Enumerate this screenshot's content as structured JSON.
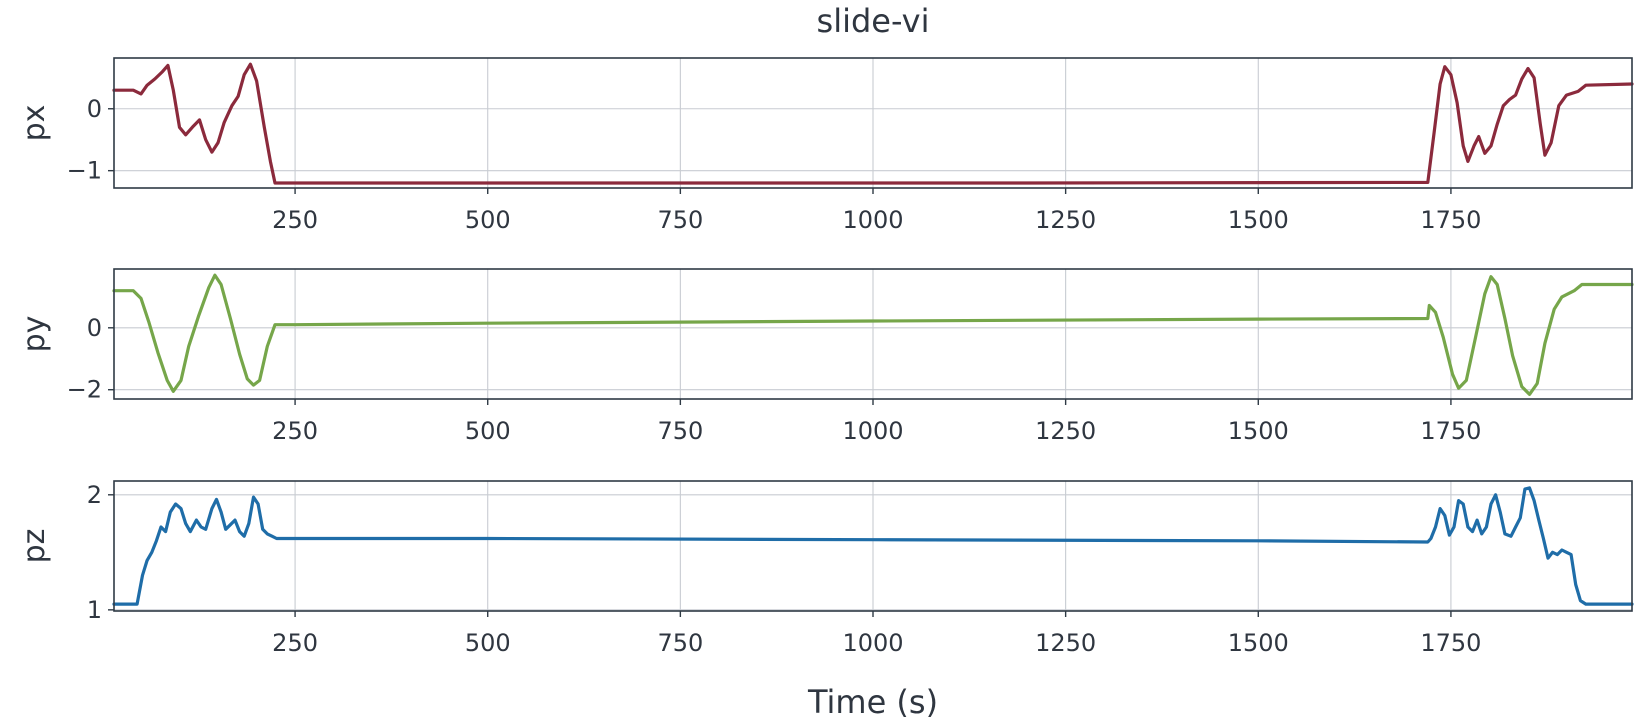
{
  "figure": {
    "title": "slide-vi",
    "xlabel": "Time (s)"
  },
  "chart_data": [
    {
      "type": "line",
      "ylabel": "px",
      "xlim": [
        15,
        1985
      ],
      "ylim": [
        -1.28,
        0.82
      ],
      "grid": true,
      "xticks": [
        250,
        500,
        750,
        1000,
        1250,
        1500,
        1750
      ],
      "yticks": [
        -1,
        0
      ],
      "ytick_labels": [
        "−1",
        "0"
      ],
      "series": [
        {
          "color": "#8b2a3c",
          "points": [
            [
              15,
              0.3
            ],
            [
              40,
              0.3
            ],
            [
              50,
              0.24
            ],
            [
              58,
              0.38
            ],
            [
              68,
              0.48
            ],
            [
              78,
              0.6
            ],
            [
              85,
              0.7
            ],
            [
              92,
              0.3
            ],
            [
              100,
              -0.3
            ],
            [
              108,
              -0.42
            ],
            [
              118,
              -0.28
            ],
            [
              126,
              -0.18
            ],
            [
              134,
              -0.5
            ],
            [
              142,
              -0.7
            ],
            [
              150,
              -0.55
            ],
            [
              158,
              -0.22
            ],
            [
              168,
              0.05
            ],
            [
              176,
              0.2
            ],
            [
              184,
              0.55
            ],
            [
              192,
              0.72
            ],
            [
              200,
              0.45
            ],
            [
              210,
              -0.3
            ],
            [
              218,
              -0.85
            ],
            [
              224,
              -1.2
            ],
            [
              400,
              -1.2
            ],
            [
              800,
              -1.2
            ],
            [
              1200,
              -1.2
            ],
            [
              1720,
              -1.19
            ],
            [
              1728,
              -0.4
            ],
            [
              1736,
              0.4
            ],
            [
              1742,
              0.68
            ],
            [
              1750,
              0.55
            ],
            [
              1758,
              0.1
            ],
            [
              1766,
              -0.6
            ],
            [
              1772,
              -0.85
            ],
            [
              1780,
              -0.6
            ],
            [
              1786,
              -0.45
            ],
            [
              1794,
              -0.72
            ],
            [
              1802,
              -0.6
            ],
            [
              1810,
              -0.25
            ],
            [
              1818,
              0.05
            ],
            [
              1826,
              0.15
            ],
            [
              1834,
              0.22
            ],
            [
              1842,
              0.48
            ],
            [
              1850,
              0.65
            ],
            [
              1858,
              0.5
            ],
            [
              1866,
              -0.25
            ],
            [
              1872,
              -0.75
            ],
            [
              1880,
              -0.55
            ],
            [
              1890,
              0.05
            ],
            [
              1900,
              0.22
            ],
            [
              1915,
              0.28
            ],
            [
              1925,
              0.38
            ],
            [
              1985,
              0.4
            ]
          ]
        }
      ]
    },
    {
      "type": "line",
      "ylabel": "py",
      "xlim": [
        15,
        1985
      ],
      "ylim": [
        -2.3,
        1.9
      ],
      "grid": true,
      "xticks": [
        250,
        500,
        750,
        1000,
        1250,
        1500,
        1750
      ],
      "yticks": [
        -2,
        0
      ],
      "ytick_labels": [
        "−2",
        "0"
      ],
      "series": [
        {
          "color": "#76a64a",
          "points": [
            [
              15,
              1.2
            ],
            [
              40,
              1.2
            ],
            [
              50,
              0.95
            ],
            [
              60,
              0.2
            ],
            [
              72,
              -0.8
            ],
            [
              84,
              -1.7
            ],
            [
              92,
              -2.05
            ],
            [
              102,
              -1.7
            ],
            [
              112,
              -0.6
            ],
            [
              125,
              0.4
            ],
            [
              138,
              1.3
            ],
            [
              146,
              1.7
            ],
            [
              154,
              1.4
            ],
            [
              166,
              0.3
            ],
            [
              178,
              -0.85
            ],
            [
              188,
              -1.65
            ],
            [
              196,
              -1.85
            ],
            [
              204,
              -1.7
            ],
            [
              214,
              -0.6
            ],
            [
              224,
              0.1
            ],
            [
              250,
              0.1
            ],
            [
              500,
              0.15
            ],
            [
              1000,
              0.22
            ],
            [
              1500,
              0.28
            ],
            [
              1720,
              0.3
            ],
            [
              1722,
              0.72
            ],
            [
              1730,
              0.5
            ],
            [
              1740,
              -0.3
            ],
            [
              1752,
              -1.5
            ],
            [
              1760,
              -1.95
            ],
            [
              1770,
              -1.7
            ],
            [
              1782,
              -0.3
            ],
            [
              1794,
              1.1
            ],
            [
              1802,
              1.65
            ],
            [
              1810,
              1.4
            ],
            [
              1820,
              0.3
            ],
            [
              1830,
              -0.9
            ],
            [
              1842,
              -1.9
            ],
            [
              1852,
              -2.15
            ],
            [
              1862,
              -1.8
            ],
            [
              1872,
              -0.5
            ],
            [
              1884,
              0.6
            ],
            [
              1894,
              1.0
            ],
            [
              1910,
              1.2
            ],
            [
              1920,
              1.4
            ],
            [
              1985,
              1.4
            ]
          ]
        }
      ]
    },
    {
      "type": "line",
      "ylabel": "pz",
      "xlim": [
        15,
        1985
      ],
      "ylim": [
        0.99,
        2.12
      ],
      "grid": true,
      "xticks": [
        250,
        500,
        750,
        1000,
        1250,
        1500,
        1750
      ],
      "yticks": [
        1,
        2
      ],
      "ytick_labels": [
        "1",
        "2"
      ],
      "series": [
        {
          "color": "#1f6da8",
          "points": [
            [
              15,
              1.05
            ],
            [
              45,
              1.05
            ],
            [
              52,
              1.3
            ],
            [
              58,
              1.43
            ],
            [
              64,
              1.5
            ],
            [
              70,
              1.6
            ],
            [
              76,
              1.72
            ],
            [
              82,
              1.68
            ],
            [
              88,
              1.85
            ],
            [
              95,
              1.92
            ],
            [
              102,
              1.88
            ],
            [
              108,
              1.75
            ],
            [
              114,
              1.68
            ],
            [
              122,
              1.78
            ],
            [
              128,
              1.72
            ],
            [
              134,
              1.7
            ],
            [
              142,
              1.88
            ],
            [
              148,
              1.96
            ],
            [
              154,
              1.85
            ],
            [
              160,
              1.7
            ],
            [
              166,
              1.74
            ],
            [
              172,
              1.78
            ],
            [
              178,
              1.68
            ],
            [
              184,
              1.64
            ],
            [
              190,
              1.75
            ],
            [
              196,
              1.98
            ],
            [
              202,
              1.92
            ],
            [
              208,
              1.7
            ],
            [
              214,
              1.66
            ],
            [
              220,
              1.64
            ],
            [
              226,
              1.62
            ],
            [
              500,
              1.62
            ],
            [
              1000,
              1.61
            ],
            [
              1500,
              1.6
            ],
            [
              1720,
              1.59
            ],
            [
              1724,
              1.62
            ],
            [
              1730,
              1.72
            ],
            [
              1736,
              1.88
            ],
            [
              1742,
              1.82
            ],
            [
              1748,
              1.65
            ],
            [
              1754,
              1.72
            ],
            [
              1760,
              1.95
            ],
            [
              1766,
              1.92
            ],
            [
              1772,
              1.72
            ],
            [
              1778,
              1.68
            ],
            [
              1784,
              1.78
            ],
            [
              1790,
              1.66
            ],
            [
              1796,
              1.72
            ],
            [
              1802,
              1.92
            ],
            [
              1808,
              2.0
            ],
            [
              1814,
              1.85
            ],
            [
              1820,
              1.66
            ],
            [
              1828,
              1.64
            ],
            [
              1834,
              1.72
            ],
            [
              1840,
              1.8
            ],
            [
              1846,
              2.05
            ],
            [
              1852,
              2.06
            ],
            [
              1858,
              1.95
            ],
            [
              1864,
              1.78
            ],
            [
              1870,
              1.62
            ],
            [
              1876,
              1.45
            ],
            [
              1882,
              1.5
            ],
            [
              1888,
              1.48
            ],
            [
              1894,
              1.52
            ],
            [
              1900,
              1.5
            ],
            [
              1906,
              1.48
            ],
            [
              1912,
              1.22
            ],
            [
              1918,
              1.08
            ],
            [
              1925,
              1.05
            ],
            [
              1985,
              1.05
            ]
          ]
        }
      ]
    }
  ]
}
